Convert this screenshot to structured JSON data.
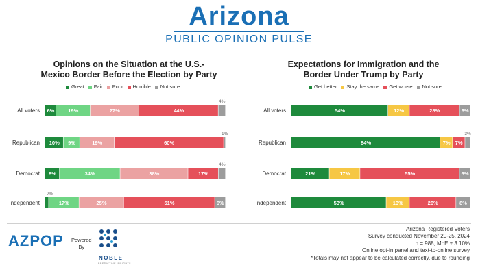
{
  "header": {
    "title": "Arizona",
    "subtitle": "PUBLIC OPINION PULSE"
  },
  "chart_data": [
    {
      "type": "bar",
      "orientation": "horizontal",
      "stacked": true,
      "title_lines": [
        "Opinions on the Situation at the U.S.-",
        "Mexico Border Before the Election by Party"
      ],
      "categories": [
        "All voters",
        "Republican",
        "Democrat",
        "Independent"
      ],
      "series": [
        {
          "name": "Great",
          "color": "#1e8a3c",
          "values": [
            6,
            10,
            8,
            2
          ]
        },
        {
          "name": "Fair",
          "color": "#6fd584",
          "values": [
            19,
            9,
            34,
            17
          ]
        },
        {
          "name": "Poor",
          "color": "#eba2a2",
          "values": [
            27,
            19,
            38,
            25
          ]
        },
        {
          "name": "Horrible",
          "color": "#e5505a",
          "values": [
            44,
            60,
            17,
            51
          ]
        },
        {
          "name": "Not sure",
          "color": "#9c9c9c",
          "values": [
            4,
            1,
            4,
            6
          ]
        }
      ]
    },
    {
      "type": "bar",
      "orientation": "horizontal",
      "stacked": true,
      "title_lines": [
        "Expectations for Immigration and the",
        "Border Under Trump by Party"
      ],
      "categories": [
        "All voters",
        "Republican",
        "Democrat",
        "Independent"
      ],
      "series": [
        {
          "name": "Get better",
          "color": "#1e8a3c",
          "values": [
            54,
            84,
            21,
            53
          ]
        },
        {
          "name": "Stay the same",
          "color": "#f6c744",
          "values": [
            12,
            7,
            17,
            13
          ]
        },
        {
          "name": "Get worse",
          "color": "#e5505a",
          "values": [
            28,
            7,
            55,
            26
          ]
        },
        {
          "name": "Not sure",
          "color": "#9c9c9c",
          "values": [
            6,
            3,
            6,
            8
          ]
        }
      ]
    }
  ],
  "footer": {
    "logo": "AZPOP",
    "powered_by": [
      "Powered",
      "By"
    ],
    "partner": "NOBLE",
    "partner_sub": "PREDICTIVE INSIGHTS",
    "notes": [
      "Arizona Registered Voters",
      "Survey conducted November 20-25, 2024",
      "n = 988, MoE ± 3.10%",
      "Online opt-in panel and text-to-online survey",
      "*Totals may not appear to be calculated correctly, due to rounding"
    ]
  }
}
